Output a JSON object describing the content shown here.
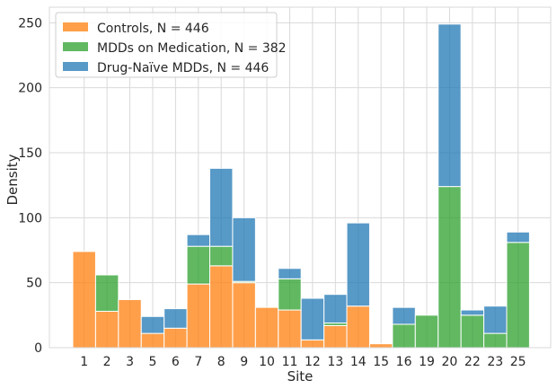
{
  "chart_data": {
    "type": "bar",
    "stacked": true,
    "xlabel": "Site",
    "ylabel": "Density",
    "ylim": [
      0,
      262
    ],
    "yticks": [
      0,
      50,
      100,
      150,
      200,
      250
    ],
    "categories": [
      "1",
      "2",
      "3",
      "5",
      "6",
      "7",
      "8",
      "9",
      "10",
      "11",
      "12",
      "13",
      "14",
      "15",
      "16",
      "19",
      "20",
      "22",
      "23",
      "25"
    ],
    "series": [
      {
        "name": "Controls, N = 446",
        "color": "#ff7f0e",
        "values": [
          74,
          28,
          37,
          11,
          15,
          49,
          63,
          50,
          31,
          29,
          6,
          17,
          32,
          3,
          0,
          0,
          0,
          0,
          0,
          0
        ]
      },
      {
        "name": "MDDs on Medication, N = 382",
        "color": "#2ca02c",
        "values": [
          0,
          28,
          0,
          0,
          0,
          29,
          15,
          1,
          0,
          24,
          0,
          2,
          0,
          0,
          18,
          25,
          124,
          25,
          11,
          81
        ]
      },
      {
        "name": "Drug-Naïve MDDs, N = 446",
        "color": "#1f77b4",
        "values": [
          0,
          0,
          0,
          13,
          15,
          9,
          60,
          49,
          0,
          8,
          32,
          22,
          64,
          0,
          13,
          0,
          125,
          4,
          21,
          8
        ]
      }
    ],
    "legend_position": "top-left",
    "grid": true
  }
}
